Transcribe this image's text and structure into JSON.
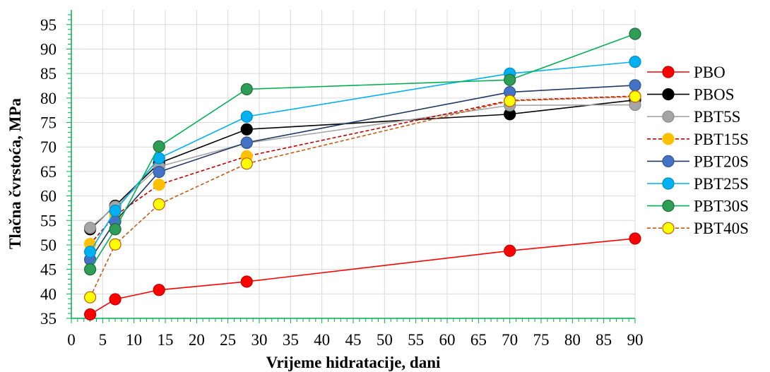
{
  "chart_data": {
    "type": "line",
    "xlabel": "Vrijeme hidratacije, dani",
    "ylabel": "Tlačna čvrstoća, MPa",
    "xlim": [
      0,
      90
    ],
    "ylim": [
      35,
      98
    ],
    "x_ticks": [
      "0",
      "5",
      "10",
      "15",
      "20",
      "25",
      "30",
      "35",
      "40",
      "45",
      "50",
      "55",
      "60",
      "65",
      "70",
      "75",
      "80",
      "85",
      "90"
    ],
    "y_ticks": [
      "35",
      "40",
      "45",
      "50",
      "55",
      "60",
      "65",
      "70",
      "75",
      "80",
      "85",
      "90",
      "95"
    ],
    "grid": true,
    "legend_position": "right",
    "x": [
      3,
      7,
      14,
      28,
      70,
      90
    ],
    "series": [
      {
        "name": "PBO",
        "values": [
          35.8,
          38.9,
          40.8,
          42.5,
          48.8,
          51.3
        ],
        "line_color": "#ff0000",
        "marker_fill": "#ff0000",
        "marker_stroke": "#c00000",
        "dashed": false
      },
      {
        "name": "PBOS",
        "values": [
          53.2,
          58.0,
          66.7,
          73.6,
          76.7,
          79.6
        ],
        "line_color": "#000000",
        "marker_fill": "#000000",
        "marker_stroke": "#000000",
        "dashed": false
      },
      {
        "name": "PBT5S",
        "values": [
          53.5,
          57.8,
          66.0,
          70.8,
          78.5,
          78.6
        ],
        "line_color": "#a5a5a5",
        "marker_fill": "#a5a5a5",
        "marker_stroke": "#8c8c8c",
        "dashed": false
      },
      {
        "name": "PBT15S",
        "values": [
          50.2,
          56.0,
          62.3,
          68.1,
          79.5,
          80.4
        ],
        "line_color": "#c00000",
        "marker_fill": "#ffc000",
        "marker_stroke": "#ffc000",
        "dashed": true
      },
      {
        "name": "PBT20S",
        "values": [
          47.0,
          54.8,
          64.9,
          70.9,
          81.2,
          82.6
        ],
        "line_color": "#1f3864",
        "marker_fill": "#4472c4",
        "marker_stroke": "#2f5597",
        "dashed": false
      },
      {
        "name": "PBT25S",
        "values": [
          48.6,
          57.0,
          67.7,
          76.2,
          85.0,
          87.4
        ],
        "line_color": "#00b0f0",
        "marker_fill": "#00b0f0",
        "marker_stroke": "#0090c8",
        "dashed": false
      },
      {
        "name": "PBT30S",
        "values": [
          45.0,
          53.2,
          70.1,
          81.8,
          83.7,
          93.1
        ],
        "line_color": "#00b050",
        "marker_fill": "#2e9e56",
        "marker_stroke": "#1e6b3a",
        "dashed": false
      },
      {
        "name": "PBT40S",
        "values": [
          39.3,
          50.1,
          58.3,
          66.6,
          79.4,
          80.3
        ],
        "line_color": "#c55a11",
        "marker_fill": "#ffff00",
        "marker_stroke": "#c55a11",
        "dashed": true
      }
    ]
  }
}
